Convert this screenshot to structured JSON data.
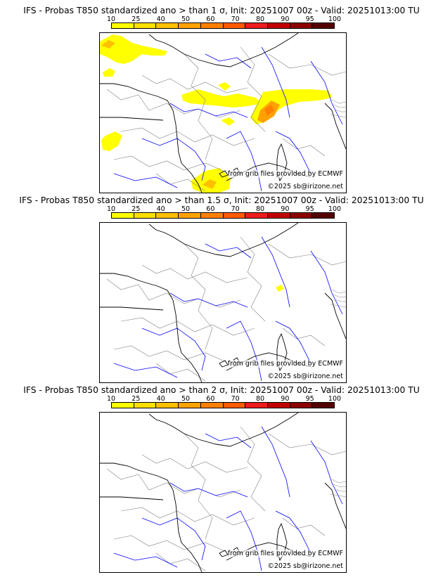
{
  "legend": {
    "ticks": [
      "10",
      "25",
      "40",
      "50",
      "60",
      "70",
      "80",
      "90",
      "95",
      "100"
    ],
    "colors": [
      "#ffff00",
      "#ffe000",
      "#ffc000",
      "#ffa200",
      "#ff8000",
      "#ff5a00",
      "#ee1c1c",
      "#c00000",
      "#8b0000",
      "#550000"
    ]
  },
  "credit": "from grib files provided by ECMWF",
  "copyright": "©2025 sb@irizone.net",
  "colors": {
    "coast": "#000000",
    "rivers": "#0000ff",
    "borders": "#808080",
    "probability_fill": "#ffff00"
  },
  "panels": [
    {
      "title": "IFS - Probas T850  standardized ano > than 1 σ, Init: 20251007 00z - Valid: 20251013:00 TU"
    },
    {
      "title": "IFS - Probas T850  standardized ano > than 1.5 σ, Init: 20251007 00z - Valid: 20251013:00 TU"
    },
    {
      "title": "IFS - Probas T850  standardized ano > than 2 σ, Init: 20251007 00z - Valid: 20251013:00 TU"
    }
  ]
}
